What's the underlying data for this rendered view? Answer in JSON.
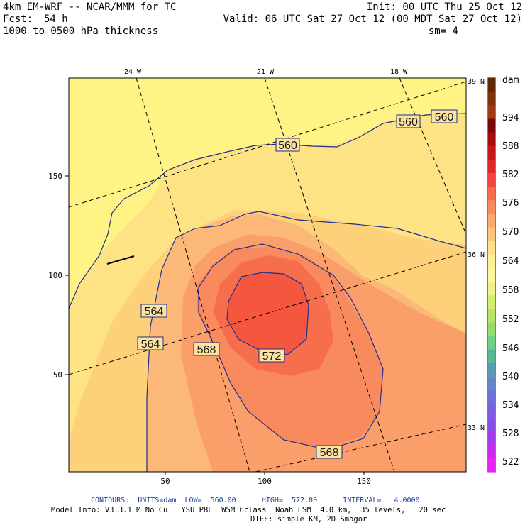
{
  "header": {
    "model_title": "4km EM-WRF -- NCAR/MMM for TC",
    "init": "Init: 00 UTC Thu 25 Oct 12",
    "fcst_label": "Fcst:",
    "fcst_value": "54 h",
    "valid": "Valid: 06 UTC Sat 27 Oct 12 (00 MDT Sat 27 Oct 12)",
    "field": "1000 to 0500 hPa thickness",
    "smoothing": "sm= 4"
  },
  "map": {
    "lon_labels": [
      "24 W",
      "21 W",
      "18 W"
    ],
    "lat_labels": [
      "39 N",
      "36 N",
      "33 N"
    ],
    "grid_x_ticks": [
      "50",
      "100",
      "150"
    ],
    "grid_y_ticks": [
      "150",
      "100",
      "50"
    ],
    "contour_labels": [
      "560",
      "560",
      "560",
      "564",
      "564",
      "568",
      "572",
      "568"
    ],
    "colors": {
      "fill_558": "#fef384",
      "fill_560": "#fde384",
      "fill_562": "#fdd07a",
      "fill_564": "#fcb878",
      "fill_566": "#fb9f6a",
      "fill_568": "#f98a5e",
      "fill_570": "#f76e4c",
      "fill_572": "#f5563e",
      "contour": "#1f2f8f"
    }
  },
  "colorbar": {
    "unit": "dam",
    "labels": [
      "594",
      "588",
      "582",
      "576",
      "570",
      "564",
      "558",
      "552",
      "546",
      "540",
      "534",
      "528",
      "522"
    ],
    "colors": [
      "#5c2a08",
      "#7e350c",
      "#a03a10",
      "#7a0808",
      "#a50c0c",
      "#c61818",
      "#e02828",
      "#f24444",
      "#f76a4c",
      "#fb8a5c",
      "#fbaa70",
      "#fcc478",
      "#fde08a",
      "#feef90",
      "#fdf7a0",
      "#eef28a",
      "#d4ec6c",
      "#b8e468",
      "#96dc6c",
      "#72cf86",
      "#58b696",
      "#5a9ab4",
      "#6486c8",
      "#6c72d8",
      "#7a60e2",
      "#8c4eea",
      "#a63aee",
      "#c82cf0",
      "#e824f4"
    ]
  },
  "footer": {
    "contours": "CONTOURS:  UNITS=dam  LOW=  560.00      HIGH=  572.00      INTERVAL=   4.0000",
    "model_info": "Model Info: V3.3.1 M No Cu   YSU PBL  WSM 6class  Noah LSM  4.0 km,  35 levels,   20 sec",
    "diff": "DIFF: simple KM, 2D Smagor"
  }
}
